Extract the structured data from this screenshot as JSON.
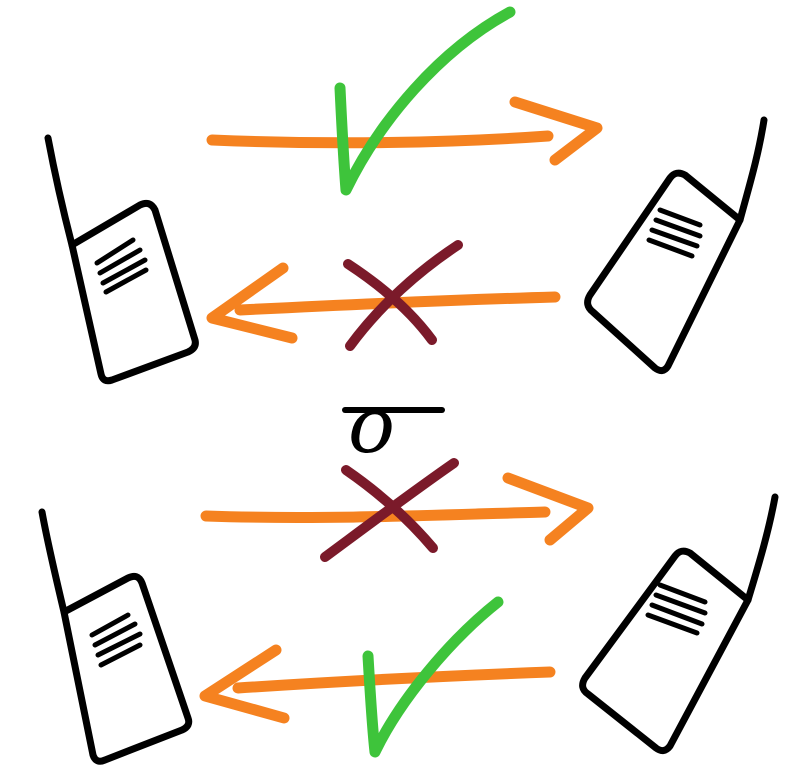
{
  "colors": {
    "arrow": "#f58220",
    "check": "#3ec43b",
    "cross": "#7b1a2a",
    "ink": "#000000"
  },
  "connector": {
    "label": "o"
  },
  "scenarios": [
    {
      "name": "top",
      "left_to_right": {
        "result": "allowed",
        "icon": "check-icon"
      },
      "right_to_left": {
        "result": "blocked",
        "icon": "cross-icon"
      }
    },
    {
      "name": "bottom",
      "left_to_right": {
        "result": "blocked",
        "icon": "cross-icon"
      },
      "right_to_left": {
        "result": "allowed",
        "icon": "check-icon"
      }
    }
  ]
}
